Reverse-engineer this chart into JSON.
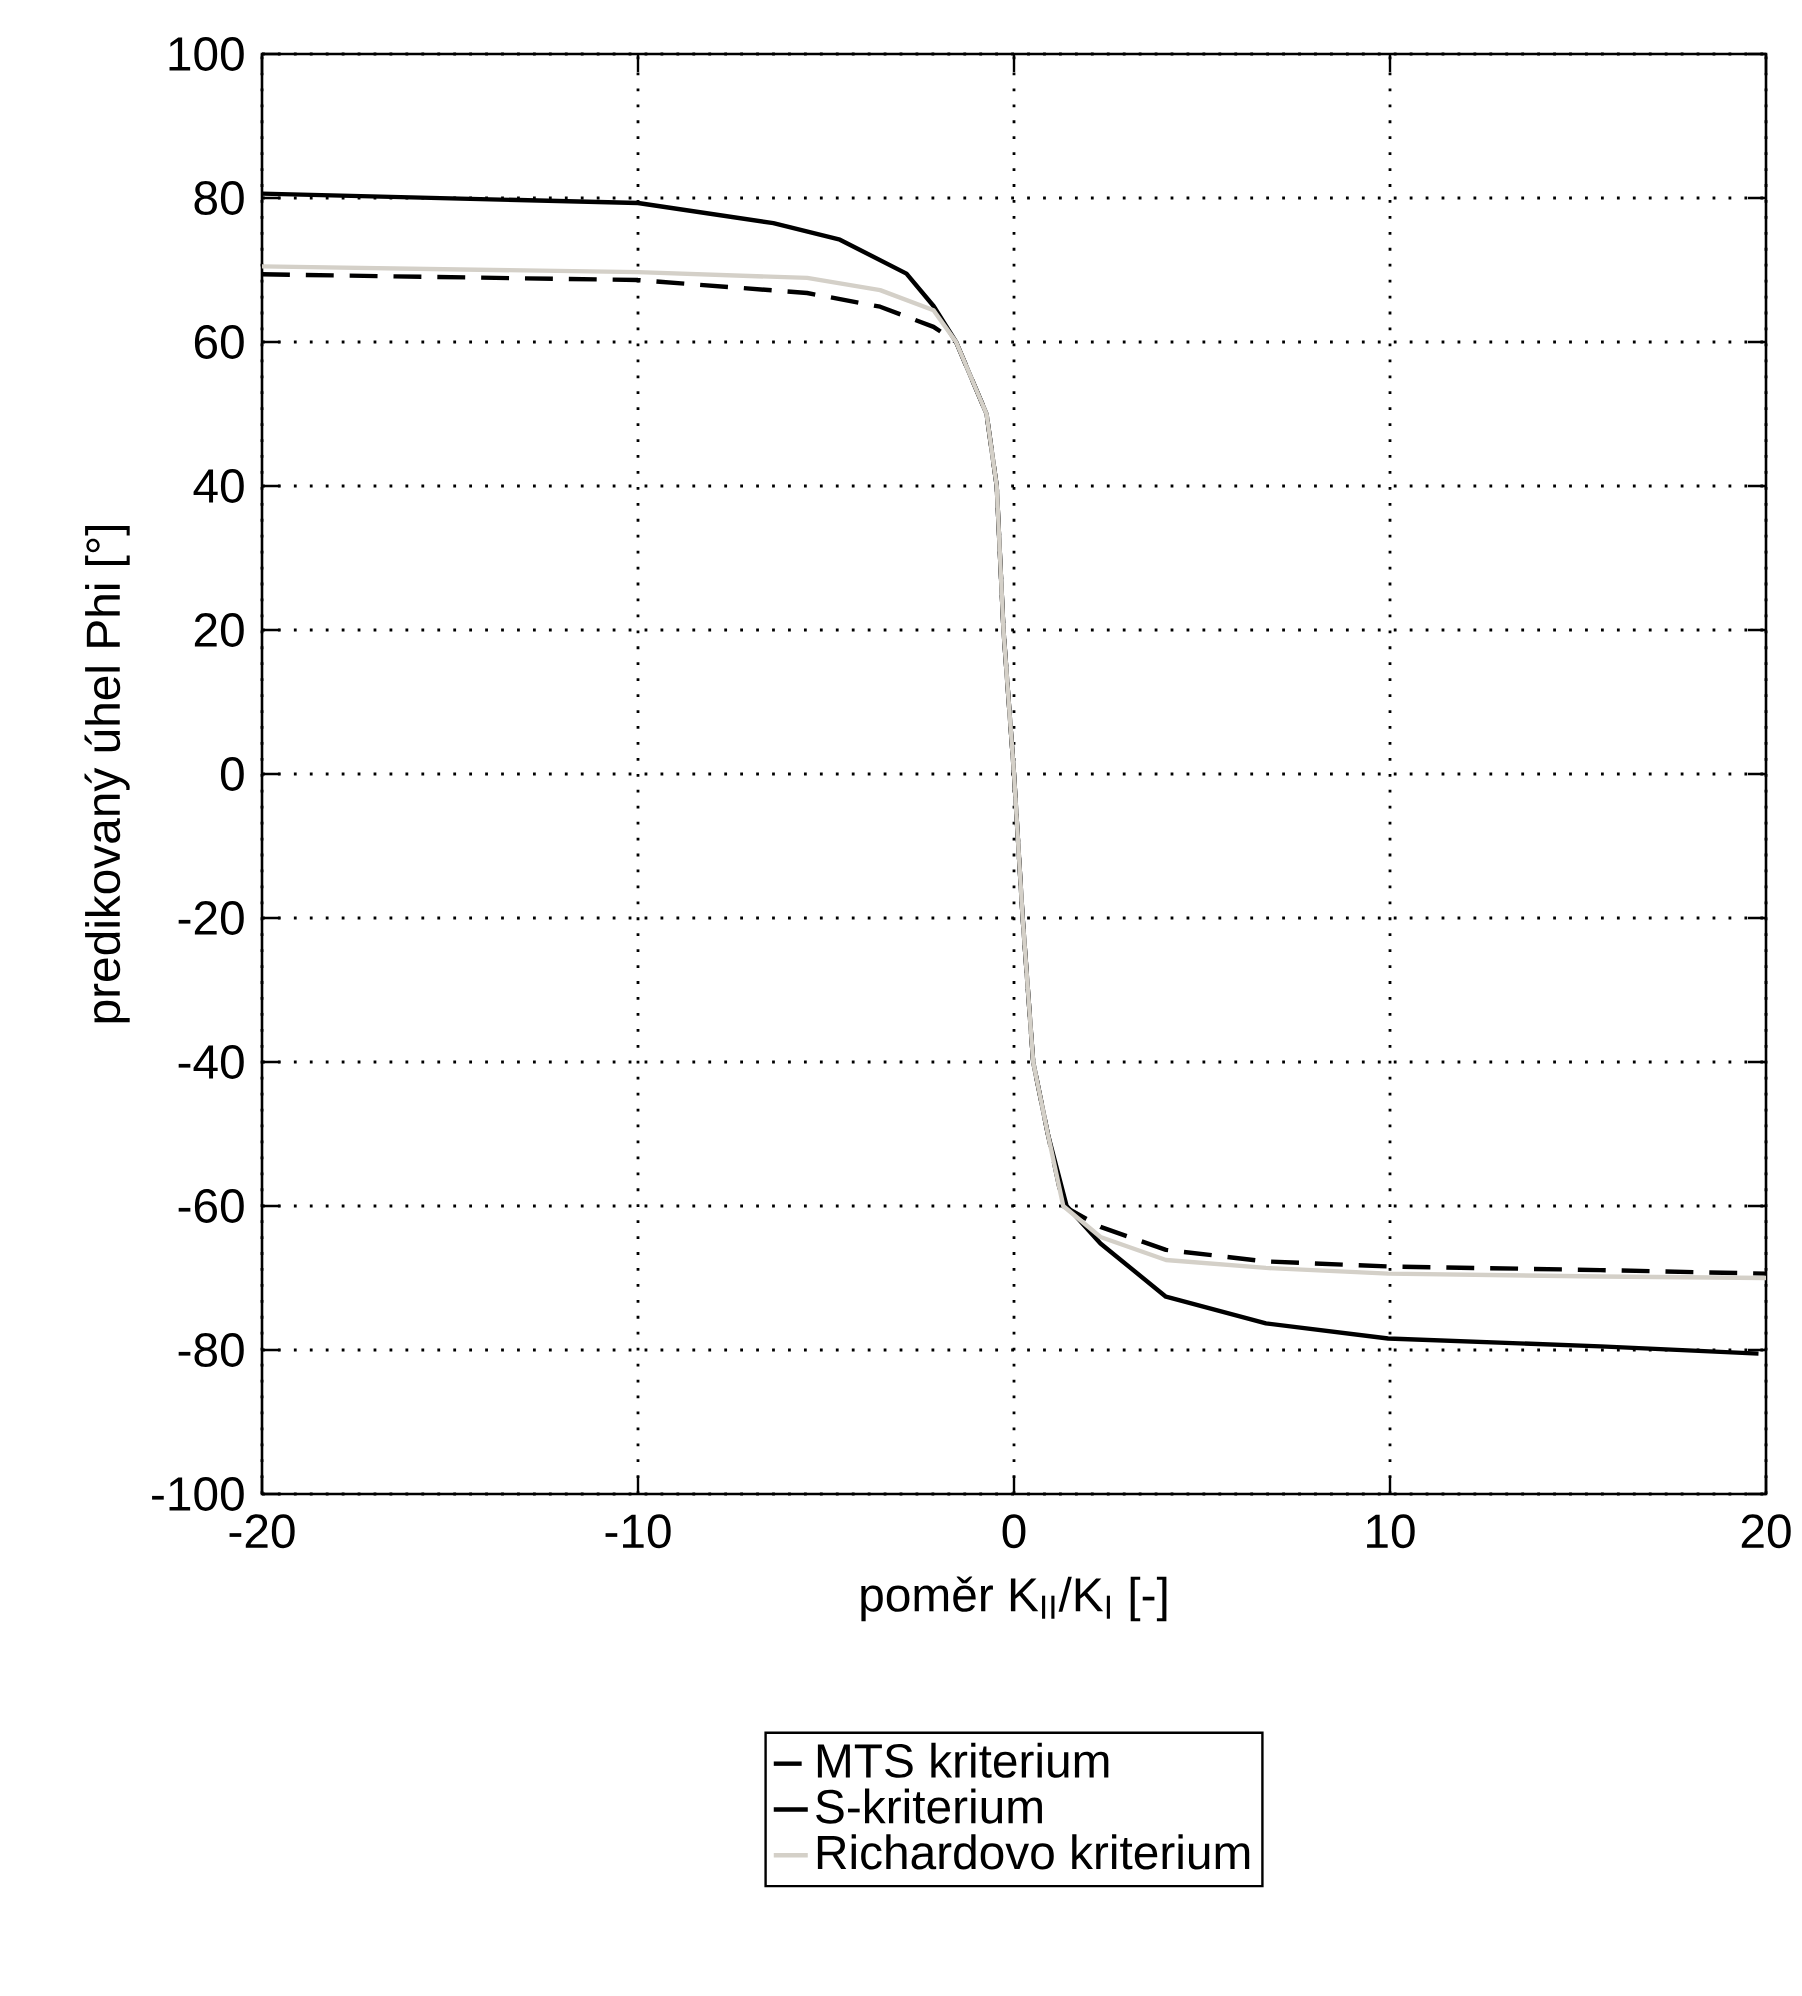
{
  "chart_data": {
    "type": "line",
    "xlabel": "poměr K$_{II}$/K$_{I}$ [-]",
    "ylabel": "predikovaný úhel Phi [°]",
    "xlim": [
      -20,
      20
    ],
    "ylim": [
      -100,
      100
    ],
    "xticks": [
      -20,
      -10,
      0,
      10,
      20
    ],
    "yticks": [
      -100,
      -80,
      -60,
      -40,
      -20,
      0,
      20,
      40,
      60,
      80,
      100
    ],
    "grid": true,
    "legend": "bottom",
    "series": [
      {
        "name": "MTS kriterium",
        "color": "#000000",
        "line_style": "dashed",
        "x": [
          -20,
          -10,
          -5.5,
          -3.56,
          -2.14,
          -1.54,
          -0.73,
          -0.46,
          -0.28,
          0,
          0.23,
          0.51,
          0.9,
          1.31,
          2.3,
          4.04,
          6.7,
          9.95,
          15.6,
          20
        ],
        "values": [
          69.4,
          68.6,
          66.8,
          64.9,
          62.1,
          60,
          50,
          40,
          20,
          0,
          -20,
          -40,
          -50,
          -60,
          -62.9,
          -66.1,
          -67.7,
          -68.4,
          -68.9,
          -69.4
        ]
      },
      {
        "name": "S-kriterium",
        "color": "#000000",
        "line_style": "solid",
        "x": [
          -20,
          -10,
          -6.4,
          -4.63,
          -2.86,
          -2.14,
          -1.54,
          -0.73,
          -0.46,
          -0.28,
          0,
          0.23,
          0.51,
          0.9,
          1.4,
          2.3,
          4.04,
          6.7,
          9.95,
          15.6,
          19.8
        ],
        "values": [
          80.6,
          79.3,
          76.5,
          74.2,
          69.5,
          65,
          60,
          50,
          40,
          20,
          0,
          -20,
          -40,
          -50,
          -60,
          -65.2,
          -72.6,
          -76.3,
          -78.4,
          -79.5,
          -80.5
        ]
      },
      {
        "name": "Richardovo kriterium",
        "color": "#d4d0c8",
        "line_style": "solid",
        "x": [
          -20,
          -10,
          -5.5,
          -3.56,
          -2.14,
          -1.54,
          -0.73,
          -0.46,
          -0.28,
          0,
          0.23,
          0.51,
          0.9,
          1.31,
          2.3,
          4.04,
          6.7,
          9.95,
          15.6,
          20
        ],
        "values": [
          70.5,
          69.7,
          68.9,
          67.2,
          64.4,
          60,
          50,
          40,
          20,
          0,
          -20,
          -40,
          -50,
          -60,
          -64.3,
          -67.5,
          -68.6,
          -69.4,
          -69.8,
          -70
        ]
      }
    ]
  }
}
